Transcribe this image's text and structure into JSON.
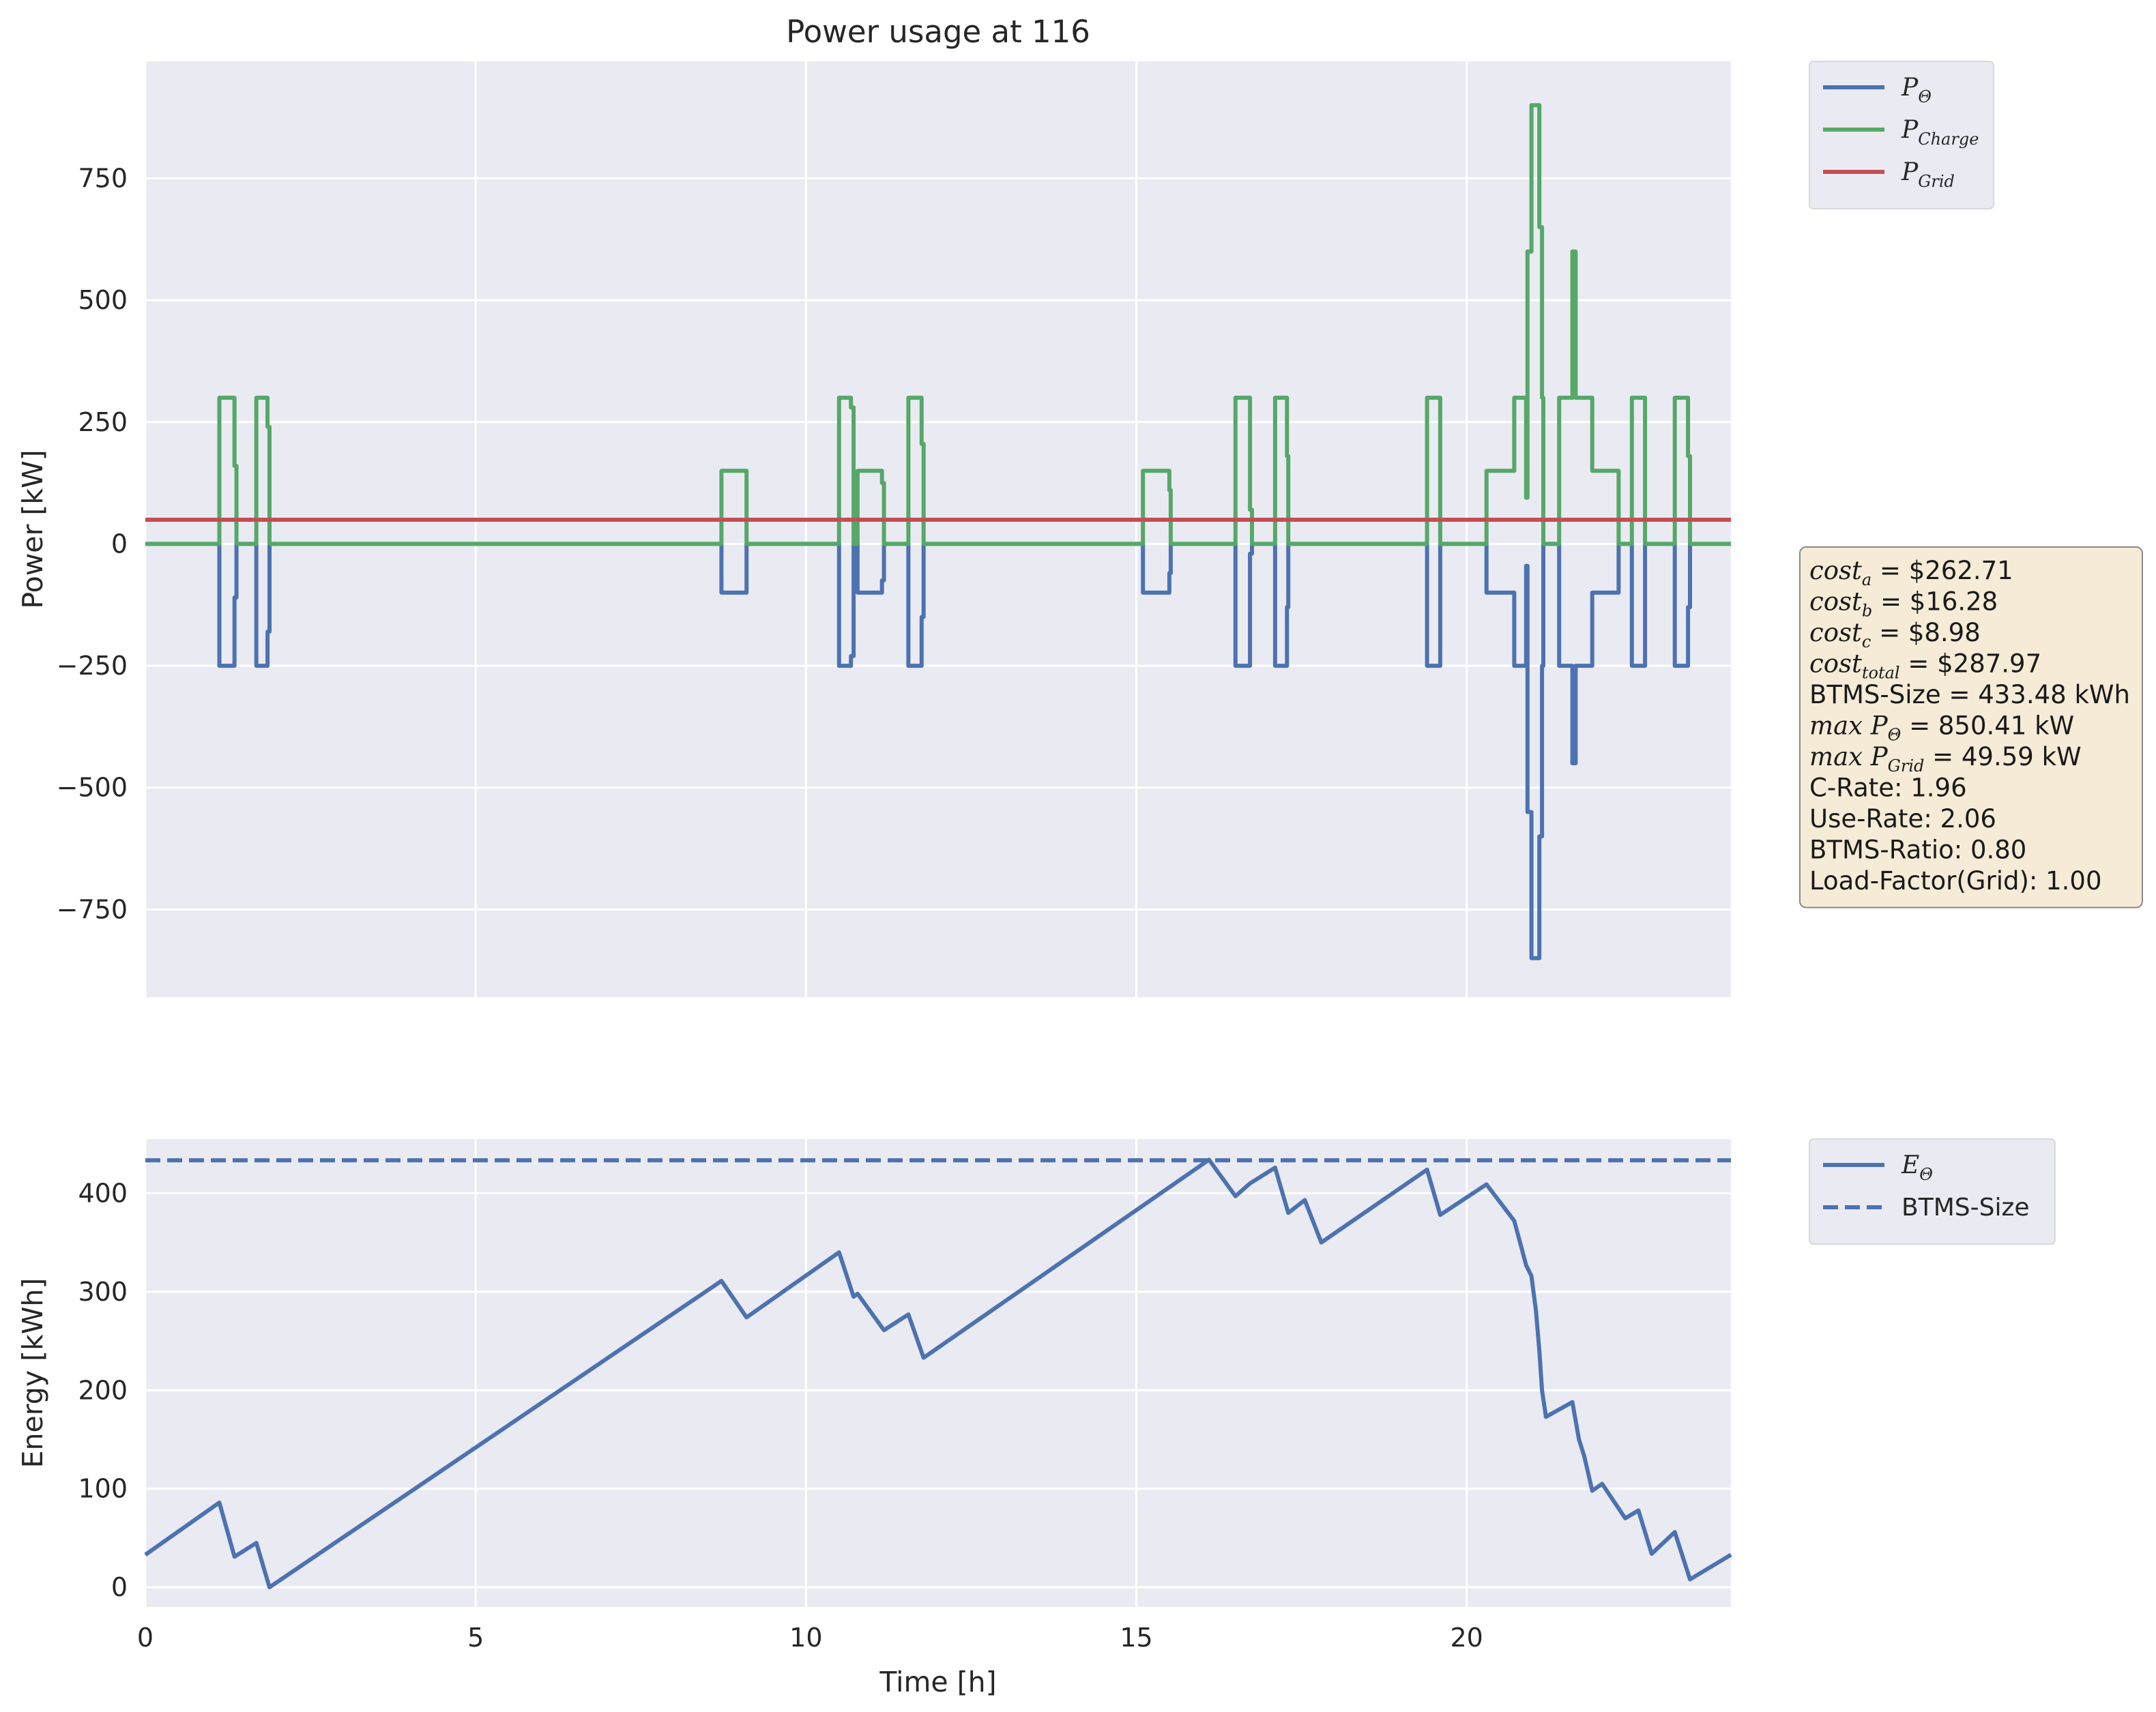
{
  "chart_data": [
    {
      "type": "line",
      "title": "Power usage at 116",
      "xlabel": "",
      "ylabel": "Power [kW]",
      "xlim": [
        0,
        24
      ],
      "ylim": [
        -930,
        990
      ],
      "x_ticks": [
        0,
        5,
        10,
        15,
        20
      ],
      "y_ticks": [
        -750,
        -500,
        -250,
        0,
        250,
        500,
        750
      ],
      "y_tick_labels": [
        "−750",
        "−500",
        "−250",
        "0",
        "250",
        "500",
        "750"
      ],
      "grid": true,
      "legend_position": "outside-top-right",
      "series": [
        {
          "name": "P_Θ",
          "legend_main": "P",
          "legend_sub": "Θ",
          "color": "#4c72b0",
          "step": true,
          "points": [
            [
              0,
              0
            ],
            [
              1.12,
              0
            ],
            [
              1.12,
              -250
            ],
            [
              1.35,
              -250
            ],
            [
              1.35,
              -110
            ],
            [
              1.38,
              -110
            ],
            [
              1.38,
              0
            ],
            [
              1.68,
              0
            ],
            [
              1.68,
              -250
            ],
            [
              1.85,
              -250
            ],
            [
              1.85,
              -180
            ],
            [
              1.88,
              -180
            ],
            [
              1.88,
              0
            ],
            [
              8.72,
              0
            ],
            [
              8.72,
              -100
            ],
            [
              9.1,
              -100
            ],
            [
              9.1,
              0
            ],
            [
              10.5,
              0
            ],
            [
              10.5,
              -250
            ],
            [
              10.68,
              -250
            ],
            [
              10.68,
              -230
            ],
            [
              10.72,
              -230
            ],
            [
              10.72,
              0
            ],
            [
              10.78,
              0
            ],
            [
              10.78,
              -100
            ],
            [
              11.15,
              -100
            ],
            [
              11.15,
              -75
            ],
            [
              11.18,
              -75
            ],
            [
              11.18,
              0
            ],
            [
              11.55,
              0
            ],
            [
              11.55,
              -250
            ],
            [
              11.75,
              -250
            ],
            [
              11.75,
              -150
            ],
            [
              11.78,
              -150
            ],
            [
              11.78,
              0
            ],
            [
              15.1,
              0
            ],
            [
              15.1,
              -100
            ],
            [
              15.5,
              -100
            ],
            [
              15.5,
              -60
            ],
            [
              15.52,
              -60
            ],
            [
              15.52,
              0
            ],
            [
              16.5,
              0
            ],
            [
              16.5,
              -250
            ],
            [
              16.72,
              -250
            ],
            [
              16.72,
              -20
            ],
            [
              16.75,
              -20
            ],
            [
              16.75,
              0
            ],
            [
              17.1,
              0
            ],
            [
              17.1,
              -250
            ],
            [
              17.28,
              -250
            ],
            [
              17.28,
              -130
            ],
            [
              17.3,
              -130
            ],
            [
              17.3,
              0
            ],
            [
              19.4,
              0
            ],
            [
              19.4,
              -250
            ],
            [
              19.6,
              -250
            ],
            [
              19.6,
              0
            ],
            [
              20.3,
              0
            ],
            [
              20.3,
              -100
            ],
            [
              20.72,
              -100
            ],
            [
              20.72,
              -250
            ],
            [
              20.9,
              -250
            ],
            [
              20.9,
              -45
            ],
            [
              20.92,
              -45
            ],
            [
              20.92,
              -550
            ],
            [
              20.98,
              -550
            ],
            [
              20.98,
              -850
            ],
            [
              21.1,
              -850
            ],
            [
              21.1,
              -600
            ],
            [
              21.14,
              -600
            ],
            [
              21.14,
              -250
            ],
            [
              21.16,
              -250
            ],
            [
              21.16,
              0
            ],
            [
              21.4,
              0
            ],
            [
              21.4,
              -250
            ],
            [
              21.6,
              -250
            ],
            [
              21.6,
              -450
            ],
            [
              21.65,
              -450
            ],
            [
              21.65,
              -250
            ],
            [
              21.9,
              -250
            ],
            [
              21.9,
              -100
            ],
            [
              22.3,
              -100
            ],
            [
              22.3,
              0
            ],
            [
              22.5,
              0
            ],
            [
              22.5,
              -250
            ],
            [
              22.7,
              -250
            ],
            [
              22.7,
              0
            ],
            [
              23.15,
              0
            ],
            [
              23.15,
              -250
            ],
            [
              23.35,
              -250
            ],
            [
              23.35,
              -130
            ],
            [
              23.38,
              -130
            ],
            [
              23.38,
              0
            ],
            [
              24,
              0
            ]
          ]
        },
        {
          "name": "P_Charge",
          "legend_main": "P",
          "legend_sub": "Charge",
          "color": "#55a868",
          "step": true,
          "points": [
            [
              0,
              0
            ],
            [
              1.12,
              0
            ],
            [
              1.12,
              300
            ],
            [
              1.35,
              300
            ],
            [
              1.35,
              160
            ],
            [
              1.38,
              160
            ],
            [
              1.38,
              0
            ],
            [
              1.68,
              0
            ],
            [
              1.68,
              300
            ],
            [
              1.85,
              300
            ],
            [
              1.85,
              240
            ],
            [
              1.88,
              240
            ],
            [
              1.88,
              0
            ],
            [
              8.72,
              0
            ],
            [
              8.72,
              150
            ],
            [
              9.1,
              150
            ],
            [
              9.1,
              0
            ],
            [
              10.5,
              0
            ],
            [
              10.5,
              300
            ],
            [
              10.68,
              300
            ],
            [
              10.68,
              280
            ],
            [
              10.72,
              280
            ],
            [
              10.72,
              0
            ],
            [
              10.78,
              0
            ],
            [
              10.78,
              150
            ],
            [
              11.15,
              150
            ],
            [
              11.15,
              125
            ],
            [
              11.18,
              125
            ],
            [
              11.18,
              0
            ],
            [
              11.55,
              0
            ],
            [
              11.55,
              300
            ],
            [
              11.75,
              300
            ],
            [
              11.75,
              205
            ],
            [
              11.78,
              205
            ],
            [
              11.78,
              0
            ],
            [
              15.1,
              0
            ],
            [
              15.1,
              150
            ],
            [
              15.5,
              150
            ],
            [
              15.5,
              110
            ],
            [
              15.52,
              110
            ],
            [
              15.52,
              0
            ],
            [
              16.5,
              0
            ],
            [
              16.5,
              300
            ],
            [
              16.72,
              300
            ],
            [
              16.72,
              70
            ],
            [
              16.75,
              70
            ],
            [
              16.75,
              0
            ],
            [
              17.1,
              0
            ],
            [
              17.1,
              300
            ],
            [
              17.28,
              300
            ],
            [
              17.28,
              180
            ],
            [
              17.3,
              180
            ],
            [
              17.3,
              0
            ],
            [
              19.4,
              0
            ],
            [
              19.4,
              300
            ],
            [
              19.6,
              300
            ],
            [
              19.6,
              0
            ],
            [
              20.3,
              0
            ],
            [
              20.3,
              150
            ],
            [
              20.72,
              150
            ],
            [
              20.72,
              300
            ],
            [
              20.9,
              300
            ],
            [
              20.9,
              95
            ],
            [
              20.92,
              95
            ],
            [
              20.92,
              600
            ],
            [
              20.98,
              600
            ],
            [
              20.98,
              900
            ],
            [
              21.1,
              900
            ],
            [
              21.1,
              650
            ],
            [
              21.14,
              650
            ],
            [
              21.14,
              300
            ],
            [
              21.16,
              300
            ],
            [
              21.16,
              0
            ],
            [
              21.4,
              0
            ],
            [
              21.4,
              300
            ],
            [
              21.6,
              300
            ],
            [
              21.6,
              600
            ],
            [
              21.65,
              600
            ],
            [
              21.65,
              300
            ],
            [
              21.9,
              300
            ],
            [
              21.9,
              150
            ],
            [
              22.3,
              150
            ],
            [
              22.3,
              0
            ],
            [
              22.5,
              0
            ],
            [
              22.5,
              300
            ],
            [
              22.7,
              300
            ],
            [
              22.7,
              0
            ],
            [
              23.15,
              0
            ],
            [
              23.15,
              300
            ],
            [
              23.35,
              300
            ],
            [
              23.35,
              180
            ],
            [
              23.38,
              180
            ],
            [
              23.38,
              0
            ],
            [
              24,
              0
            ]
          ]
        },
        {
          "name": "P_Grid",
          "legend_main": "P",
          "legend_sub": "Grid",
          "color": "#c44e52",
          "step": false,
          "points": [
            [
              0,
              49.59
            ],
            [
              24,
              49.59
            ]
          ]
        }
      ]
    },
    {
      "type": "line",
      "title": "",
      "xlabel": "Time [h]",
      "ylabel": "Energy [kWh]",
      "xlim": [
        0,
        24
      ],
      "ylim": [
        -20,
        455
      ],
      "x_ticks": [
        0,
        5,
        10,
        15,
        20
      ],
      "y_ticks": [
        0,
        100,
        200,
        300,
        400
      ],
      "grid": true,
      "legend_position": "outside-top-right",
      "series": [
        {
          "name": "E_Θ",
          "legend_main": "E",
          "legend_sub": "Θ",
          "color": "#4c72b0",
          "dashed": false,
          "points": [
            [
              0,
              33
            ],
            [
              1.12,
              86
            ],
            [
              1.35,
              31
            ],
            [
              1.68,
              45
            ],
            [
              1.88,
              0
            ],
            [
              8.72,
              311
            ],
            [
              9.1,
              274
            ],
            [
              10.5,
              340
            ],
            [
              10.72,
              295
            ],
            [
              10.78,
              298
            ],
            [
              11.18,
              261
            ],
            [
              11.55,
              277
            ],
            [
              11.78,
              233
            ],
            [
              16.1,
              434
            ],
            [
              16.5,
              397
            ],
            [
              16.72,
              410
            ],
            [
              17.1,
              426
            ],
            [
              17.3,
              380
            ],
            [
              17.55,
              393
            ],
            [
              17.8,
              350
            ],
            [
              19.4,
              424
            ],
            [
              19.6,
              378
            ],
            [
              20.3,
              409
            ],
            [
              20.72,
              372
            ],
            [
              20.9,
              327
            ],
            [
              20.98,
              316
            ],
            [
              21.05,
              280
            ],
            [
              21.1,
              240
            ],
            [
              21.14,
              200
            ],
            [
              21.2,
              173
            ],
            [
              21.6,
              188
            ],
            [
              21.7,
              150
            ],
            [
              21.78,
              133
            ],
            [
              21.9,
              98
            ],
            [
              22.05,
              105
            ],
            [
              22.4,
              70
            ],
            [
              22.6,
              78
            ],
            [
              22.8,
              34
            ],
            [
              23.15,
              56
            ],
            [
              23.38,
              8
            ],
            [
              24,
              33
            ]
          ]
        },
        {
          "name": "BTMS-Size",
          "legend_main": "BTMS-Size",
          "legend_sub": "",
          "color": "#4c72b0",
          "dashed": true,
          "points": [
            [
              0,
              433.48
            ],
            [
              24,
              433.48
            ]
          ]
        }
      ]
    }
  ],
  "info_box": {
    "lines": [
      {
        "main": "cost",
        "sub": "a",
        "rest": " = $262.71"
      },
      {
        "main": "cost",
        "sub": "b",
        "rest": " = $16.28"
      },
      {
        "main": "cost",
        "sub": "c",
        "rest": " = $8.98"
      },
      {
        "main": "cost",
        "sub": "total",
        "rest": " = $287.97"
      },
      {
        "main": "BTMS-Size",
        "sub": "",
        "rest": " = 433.48 kWh"
      },
      {
        "main": "max P",
        "sub": "Θ",
        "rest": " = 850.41 kW"
      },
      {
        "main": "max P",
        "sub": "Grid",
        "rest": " = 49.59 kW"
      },
      {
        "main": "C-Rate: 1.96",
        "sub": "",
        "rest": ""
      },
      {
        "main": "Use-Rate: 2.06",
        "sub": "",
        "rest": ""
      },
      {
        "main": "BTMS-Ratio: 0.80",
        "sub": "",
        "rest": ""
      },
      {
        "main": "Load-Factor(Grid): 1.00",
        "sub": "",
        "rest": ""
      }
    ]
  },
  "colors": {
    "axes_background": "#eaeaf2",
    "grid": "#ffffff",
    "info_box_background": "#f5ebd6",
    "text": "#262626"
  }
}
